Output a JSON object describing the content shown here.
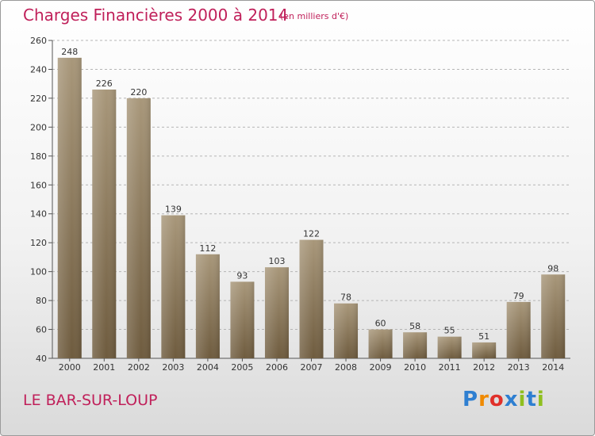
{
  "header": {
    "title": "Charges Financières 2000 à 2014",
    "subtitle": "(en milliers d'€)"
  },
  "footer": {
    "city": "LE BAR-SUR-LOUP",
    "logo": "Proxiti"
  },
  "chart_data": {
    "type": "bar",
    "categories": [
      "2000",
      "2001",
      "2002",
      "2003",
      "2004",
      "2005",
      "2006",
      "2007",
      "2008",
      "2009",
      "2010",
      "2011",
      "2012",
      "2013",
      "2014"
    ],
    "values": [
      248,
      226,
      220,
      139,
      112,
      93,
      103,
      122,
      78,
      60,
      58,
      55,
      51,
      79,
      98
    ],
    "title": "Charges Financières 2000 à 2014",
    "subtitle": "(en milliers d'€)",
    "xlabel": "",
    "ylabel": "",
    "ylim": [
      40,
      260
    ],
    "yticks": [
      40,
      60,
      80,
      100,
      120,
      140,
      160,
      180,
      200,
      220,
      240,
      260
    ],
    "grid": true,
    "data_labels": true,
    "colors": {
      "bar_top": "#a8977a",
      "bar_bottom": "#6e5b3e",
      "text_accent": "#c0205a",
      "grid": "#b5b5b5"
    }
  },
  "logo_colors": [
    "#2e7fd1",
    "#f08a00",
    "#e0302a",
    "#2e7fd1",
    "#8fbf1f",
    "#2e7fd1",
    "#8fbf1f"
  ]
}
